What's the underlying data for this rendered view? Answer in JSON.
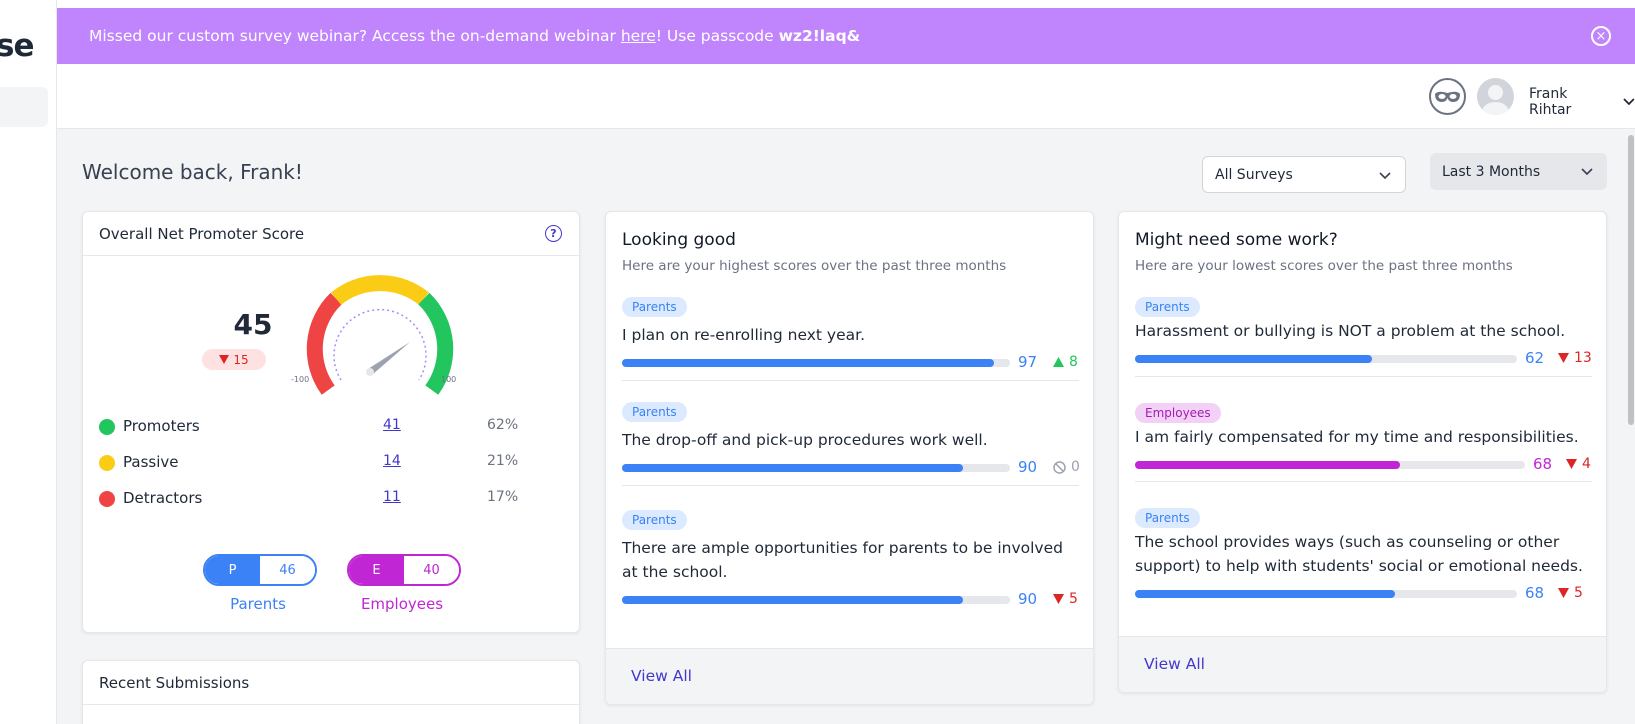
{
  "sidebar": {
    "brand_fragment": "se"
  },
  "banner": {
    "text_before": "Missed our custom survey webinar? Access the on-demand webinar ",
    "link_text": "here",
    "text_middle": "! Use passcode ",
    "passcode": "wz2!laq&",
    "close_icon": "×"
  },
  "header": {
    "user_name": "Frank Rihtar"
  },
  "welcome": "Welcome back, Frank!",
  "filters": {
    "surveys": "All Surveys",
    "period": "Last 3 Months"
  },
  "nps": {
    "title": "Overall Net Promoter Score",
    "help_icon": "?",
    "score": "45",
    "delta": "15",
    "gauge_min": "-100",
    "gauge_max": "100",
    "legend": [
      {
        "label": "Promoters",
        "count": "41",
        "percent": "62%",
        "color": "#22c55e"
      },
      {
        "label": "Passive",
        "count": "14",
        "percent": "21%",
        "color": "#facc15"
      },
      {
        "label": "Detractors",
        "count": "11",
        "percent": "17%",
        "color": "#ef4444"
      }
    ],
    "segments": [
      {
        "letter": "P",
        "value": "46",
        "label": "Parents",
        "color": "#3b82f6"
      },
      {
        "letter": "E",
        "value": "40",
        "label": "Employees",
        "color": "#c026d3"
      }
    ]
  },
  "recent": {
    "title": "Recent Submissions"
  },
  "good": {
    "title": "Looking good",
    "subtitle": "Here are your highest scores over the past three months",
    "items": [
      {
        "tag": "Parents",
        "question": "I plan on re-enrolling next year.",
        "score": "97",
        "change": "8",
        "trend": "up"
      },
      {
        "tag": "Parents",
        "question": "The drop-off and pick-up procedures work well.",
        "score": "90",
        "change": "0",
        "trend": "none"
      },
      {
        "tag": "Parents",
        "question": "There are ample opportunities for parents to be involved at the school.",
        "score": "90",
        "change": "5",
        "trend": "down"
      }
    ],
    "view_all": "View All"
  },
  "bad": {
    "title": "Might need some work?",
    "subtitle": "Here are your lowest scores over the past three months",
    "items": [
      {
        "tag": "Parents",
        "question": "Harassment or bullying is NOT a problem at the school.",
        "score": "62",
        "change": "13",
        "trend": "down"
      },
      {
        "tag": "Employees",
        "question": "I am fairly compensated for my time and responsibilities.",
        "score": "68",
        "change": "4",
        "trend": "down"
      },
      {
        "tag": "Parents",
        "question": "The school provides ways (such as counseling or other support) to help with students' social or emotional needs.",
        "score": "68",
        "change": "5",
        "trend": "down"
      }
    ],
    "view_all": "View All"
  },
  "colors": {
    "accent": "#4338ca",
    "banner": "#c084fc",
    "parents": "#3b82f6",
    "employees": "#c026d3",
    "up": "#22c55e",
    "down": "#dc2626"
  }
}
